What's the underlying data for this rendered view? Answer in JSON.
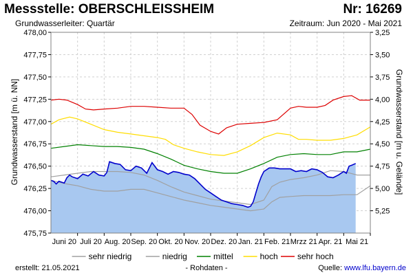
{
  "header": {
    "station": "Messstelle: OBERSCHLEISSHEIM",
    "station_no": "Nr: 16269",
    "aquifer": "Grundwasserleiter: Quartär",
    "period": "Zeitraum: Jun 2020 - Mai 2021"
  },
  "footer": {
    "created_label": "erstellt:",
    "created_date": "21.05.2021",
    "raw": "- Rohdaten -",
    "source_label": "Quelle:",
    "source_url": "www.lfu.bayern.de"
  },
  "colors": {
    "fill": "#a8c8f0",
    "measured": "#0000cc",
    "sehr_niedrig": "#a0a0a0",
    "niedrig": "#a0a0a0",
    "mittel": "#008000",
    "hoch": "#ffdd00",
    "sehr_hoch": "#dd0000",
    "grid": "#d0d0d0"
  },
  "chart_data": {
    "type": "line",
    "x_tick_labels": [
      "Juni 20",
      "Juli 20",
      "Aug. 20",
      "Sep. 20",
      "Okt. 20",
      "Nov. 20",
      "Dez. 20",
      "Jan. 21",
      "Feb. 21",
      "Mrzz 21",
      "Apr. 21",
      "Mai 21"
    ],
    "x_range": [
      0,
      12
    ],
    "ylabel": "Grundwasserstand [m ü. NN]",
    "ylim": [
      475.75,
      478.0
    ],
    "y_ticks": [
      475.75,
      476.0,
      476.25,
      476.5,
      476.75,
      477.0,
      477.25,
      477.5,
      477.75,
      478.0
    ],
    "y_tick_labels": [
      "475,75",
      "476,00",
      "476,25",
      "476,50",
      "476,75",
      "477,00",
      "477,25",
      "477,50",
      "477,75",
      "478,00"
    ],
    "y2label": "Grundwasserstand [m u. Gelände]",
    "y2_ticks": [
      3.25,
      3.5,
      3.75,
      4.0,
      4.25,
      4.5,
      4.75,
      5.0,
      5.25
    ],
    "y2_tick_labels": [
      "3,25",
      "3,50",
      "3,75",
      "4,00",
      "4,25",
      "4,50",
      "4,75",
      "5,00",
      "5,25"
    ],
    "y2_reference": 481.25,
    "grid": true,
    "legend_position": "bottom",
    "measured": {
      "name": "",
      "end_x": 11.45,
      "x": [
        0,
        0.1,
        0.2,
        0.3,
        0.4,
        0.5,
        0.6,
        0.7,
        0.8,
        0.9,
        1.0,
        1.2,
        1.4,
        1.6,
        1.8,
        2.0,
        2.1,
        2.2,
        2.4,
        2.6,
        2.8,
        3.0,
        3.2,
        3.4,
        3.6,
        3.8,
        4.0,
        4.2,
        4.4,
        4.6,
        4.8,
        5.0,
        5.2,
        5.4,
        5.6,
        5.8,
        6.0,
        6.2,
        6.4,
        6.6,
        6.8,
        7.0,
        7.2,
        7.4,
        7.5,
        7.6,
        7.7,
        7.8,
        7.9,
        8.0,
        8.2,
        8.4,
        8.6,
        8.8,
        9.0,
        9.2,
        9.4,
        9.6,
        9.8,
        10.0,
        10.2,
        10.4,
        10.6,
        10.8,
        11.0,
        11.1,
        11.2,
        11.3,
        11.45
      ],
      "y": [
        476.34,
        476.33,
        476.3,
        476.33,
        476.32,
        476.31,
        476.37,
        476.4,
        476.38,
        476.37,
        476.36,
        476.41,
        476.39,
        476.44,
        476.4,
        476.39,
        476.43,
        476.55,
        476.53,
        476.52,
        476.46,
        476.45,
        476.5,
        476.48,
        476.42,
        476.54,
        476.46,
        476.44,
        476.41,
        476.44,
        476.43,
        476.41,
        476.4,
        476.36,
        476.3,
        476.24,
        476.2,
        476.16,
        476.12,
        476.1,
        476.08,
        476.07,
        476.06,
        476.04,
        476.05,
        476.1,
        476.2,
        476.3,
        476.38,
        476.44,
        476.48,
        476.48,
        476.47,
        476.47,
        476.47,
        476.44,
        476.45,
        476.44,
        476.47,
        476.46,
        476.43,
        476.38,
        476.37,
        476.4,
        476.44,
        476.42,
        476.5,
        476.51,
        476.53
      ]
    },
    "series": [
      {
        "name": "sehr niedrig",
        "x": [
          0,
          0.3,
          0.6,
          1.0,
          1.5,
          2.0,
          2.5,
          3.0,
          3.5,
          4.0,
          4.5,
          5.0,
          5.5,
          6.0,
          6.5,
          7.0,
          7.5,
          8.0,
          8.3,
          8.6,
          9.0,
          9.5,
          10.0,
          10.5,
          11.0,
          11.5,
          12.0
        ],
        "y": [
          476.34,
          476.32,
          476.3,
          476.28,
          476.24,
          476.22,
          476.22,
          476.24,
          476.24,
          476.2,
          476.16,
          476.12,
          476.09,
          476.06,
          476.04,
          476.02,
          476.0,
          476.02,
          476.1,
          476.15,
          476.16,
          476.17,
          476.17,
          476.17,
          476.18,
          476.18,
          476.28
        ]
      },
      {
        "name": "niedrig",
        "x": [
          0,
          0.5,
          1.0,
          1.5,
          2.0,
          2.5,
          3.0,
          3.5,
          4.0,
          4.5,
          5.0,
          5.5,
          6.0,
          6.5,
          7.0,
          7.5,
          8.0,
          8.3,
          8.6,
          9.0,
          9.5,
          10.0,
          10.5,
          11.0,
          11.5,
          12.0
        ],
        "y": [
          476.38,
          476.4,
          476.42,
          476.44,
          476.44,
          476.44,
          476.43,
          476.4,
          476.34,
          476.27,
          476.21,
          476.17,
          476.13,
          476.11,
          476.09,
          476.07,
          476.12,
          476.27,
          476.32,
          476.35,
          476.37,
          476.4,
          476.45,
          476.44,
          476.4,
          476.4
        ]
      },
      {
        "name": "mittel",
        "x": [
          0,
          0.5,
          1.0,
          1.5,
          2.0,
          2.5,
          3.0,
          3.5,
          4.0,
          4.5,
          5.0,
          5.5,
          6.0,
          6.5,
          7.0,
          7.5,
          8.0,
          8.5,
          9.0,
          9.5,
          10.0,
          10.5,
          11.0,
          11.5,
          12.0
        ],
        "y": [
          476.7,
          476.72,
          476.74,
          476.73,
          476.72,
          476.72,
          476.71,
          476.69,
          476.64,
          476.58,
          476.51,
          476.47,
          476.44,
          476.42,
          476.42,
          476.47,
          476.53,
          476.6,
          476.63,
          476.64,
          476.63,
          476.63,
          476.66,
          476.66,
          476.69
        ]
      },
      {
        "name": "hoch",
        "x": [
          0,
          0.3,
          0.7,
          1.0,
          1.5,
          2.0,
          2.5,
          3.0,
          3.5,
          4.0,
          4.3,
          4.6,
          5.0,
          5.5,
          6.0,
          6.5,
          7.0,
          7.5,
          8.0,
          8.5,
          9.0,
          9.3,
          9.6,
          10.0,
          10.5,
          11.0,
          11.5,
          12.0
        ],
        "y": [
          476.97,
          477.02,
          477.05,
          477.03,
          476.97,
          476.91,
          476.88,
          476.86,
          476.84,
          476.82,
          476.8,
          476.74,
          476.7,
          476.66,
          476.63,
          476.62,
          476.66,
          476.73,
          476.82,
          476.87,
          476.85,
          476.8,
          476.8,
          476.79,
          476.79,
          476.81,
          476.85,
          476.94
        ]
      },
      {
        "name": "sehr hoch",
        "x": [
          0,
          0.3,
          0.6,
          1.0,
          1.3,
          1.6,
          2.0,
          2.5,
          3.0,
          3.5,
          4.0,
          4.5,
          5.0,
          5.3,
          5.6,
          6.0,
          6.3,
          6.6,
          7.0,
          7.5,
          8.0,
          8.5,
          9.0,
          9.3,
          9.6,
          10.0,
          10.3,
          10.6,
          11.0,
          11.3,
          11.6,
          12.0
        ],
        "y": [
          477.24,
          477.25,
          477.24,
          477.19,
          477.14,
          477.13,
          477.14,
          477.15,
          477.17,
          477.17,
          477.16,
          477.15,
          477.15,
          477.08,
          476.96,
          476.89,
          476.86,
          476.93,
          476.97,
          476.98,
          476.99,
          477.02,
          477.15,
          477.17,
          477.16,
          477.16,
          477.18,
          477.24,
          477.28,
          477.29,
          477.24,
          477.24
        ]
      }
    ]
  }
}
